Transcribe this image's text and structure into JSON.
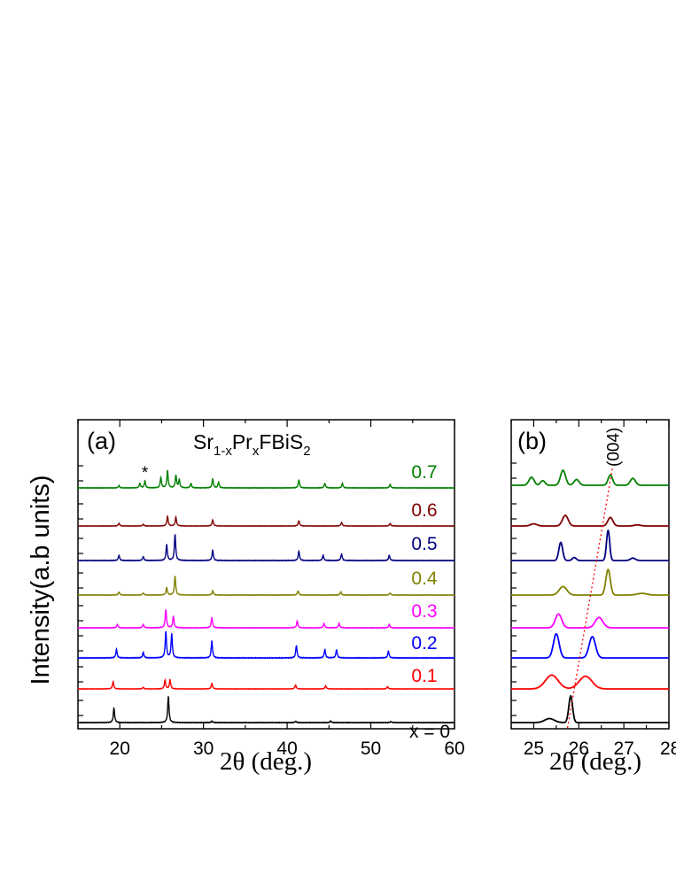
{
  "chart_data": [
    {
      "panel": "(a)",
      "type": "line",
      "compound": {
        "base": "Sr",
        "sub1": "1-x",
        "mid": "Pr",
        "sub2": "x",
        "rest": "FBiS",
        "sub3": "2"
      },
      "xlabel": {
        "prefix": "2",
        "symbol": "θ",
        "suffix": " (deg.)"
      },
      "ylabel": "Intensity(a.b units)",
      "xlim": [
        15,
        60
      ],
      "xticks": [
        "20",
        "30",
        "40",
        "50",
        "60"
      ],
      "annotation": "*",
      "annotation_x": 23.0,
      "series": [
        {
          "name": "x = 0",
          "color": "#000000",
          "peaks": [
            [
              19.3,
              0.55
            ],
            [
              25.8,
              1.0
            ],
            [
              31.0,
              0.06
            ],
            [
              41.0,
              0.05
            ],
            [
              45.2,
              0.06
            ],
            [
              52.4,
              0.04
            ]
          ]
        },
        {
          "name": "0.1",
          "color": "#ff0000",
          "peaks": [
            [
              19.2,
              0.45
            ],
            [
              22.8,
              0.1
            ],
            [
              25.4,
              0.55
            ],
            [
              26.0,
              0.58
            ],
            [
              31.0,
              0.35
            ],
            [
              41.0,
              0.25
            ],
            [
              44.6,
              0.2
            ],
            [
              52.0,
              0.15
            ]
          ]
        },
        {
          "name": "0.2",
          "color": "#0000ff",
          "peaks": [
            [
              19.6,
              0.3
            ],
            [
              22.8,
              0.2
            ],
            [
              25.5,
              0.95
            ],
            [
              26.2,
              0.85
            ],
            [
              31.0,
              0.6
            ],
            [
              41.1,
              0.45
            ],
            [
              44.5,
              0.3
            ],
            [
              45.9,
              0.3
            ],
            [
              52.1,
              0.25
            ]
          ]
        },
        {
          "name": "0.3",
          "color": "#ff00ff",
          "peaks": [
            [
              19.7,
              0.15
            ],
            [
              22.8,
              0.15
            ],
            [
              25.5,
              0.8
            ],
            [
              26.4,
              0.5
            ],
            [
              31.0,
              0.45
            ],
            [
              41.2,
              0.3
            ],
            [
              44.4,
              0.2
            ],
            [
              46.2,
              0.2
            ],
            [
              52.2,
              0.15
            ]
          ]
        },
        {
          "name": "0.4",
          "color": "#808000",
          "peaks": [
            [
              19.9,
              0.15
            ],
            [
              22.8,
              0.1
            ],
            [
              25.6,
              0.35
            ],
            [
              26.6,
              0.9
            ],
            [
              31.1,
              0.2
            ],
            [
              41.3,
              0.2
            ],
            [
              46.4,
              0.15
            ],
            [
              52.3,
              0.1
            ]
          ]
        },
        {
          "name": "0.5",
          "color": "#000080",
          "peaks": [
            [
              19.9,
              0.2
            ],
            [
              22.8,
              0.15
            ],
            [
              25.6,
              0.6
            ],
            [
              26.6,
              1.0
            ],
            [
              31.1,
              0.4
            ],
            [
              41.4,
              0.35
            ],
            [
              44.3,
              0.2
            ],
            [
              46.5,
              0.25
            ],
            [
              52.2,
              0.2
            ]
          ]
        },
        {
          "name": "0.6",
          "color": "#800000",
          "peaks": [
            [
              19.9,
              0.15
            ],
            [
              22.8,
              0.1
            ],
            [
              25.7,
              0.55
            ],
            [
              26.7,
              0.5
            ],
            [
              31.1,
              0.35
            ],
            [
              41.4,
              0.3
            ],
            [
              46.5,
              0.2
            ],
            [
              52.3,
              0.15
            ]
          ]
        },
        {
          "name": "0.7",
          "color": "#008000",
          "peaks": [
            [
              19.9,
              0.1
            ],
            [
              22.4,
              0.2
            ],
            [
              23.0,
              0.3
            ],
            [
              24.9,
              0.45
            ],
            [
              25.7,
              0.75
            ],
            [
              26.7,
              0.55
            ],
            [
              27.1,
              0.35
            ],
            [
              28.5,
              0.2
            ],
            [
              31.1,
              0.4
            ],
            [
              31.8,
              0.25
            ],
            [
              41.4,
              0.35
            ],
            [
              44.5,
              0.2
            ],
            [
              46.6,
              0.2
            ],
            [
              52.3,
              0.15
            ]
          ]
        }
      ]
    },
    {
      "panel": "(b)",
      "type": "line",
      "xlabel": {
        "prefix": "2",
        "symbol": "θ",
        "suffix": " (deg.)"
      },
      "xlim": [
        24.5,
        28
      ],
      "xticks": [
        "25",
        "26",
        "27",
        "28"
      ],
      "annotation": "(004)",
      "guide_line": {
        "x_start": 25.75,
        "x_end": 26.75
      },
      "series": [
        {
          "name": "x = 0",
          "peaks": [
            [
              25.35,
              0.15,
              0.15
            ],
            [
              25.82,
              1.0,
              0.06
            ]
          ]
        },
        {
          "name": "0.1",
          "peaks": [
            [
              25.4,
              0.6,
              0.2
            ],
            [
              26.15,
              0.55,
              0.2
            ]
          ]
        },
        {
          "name": "0.2",
          "peaks": [
            [
              25.5,
              0.85,
              0.09
            ],
            [
              26.3,
              0.75,
              0.1
            ]
          ]
        },
        {
          "name": "0.3",
          "peaks": [
            [
              25.55,
              0.6,
              0.1
            ],
            [
              26.45,
              0.45,
              0.12
            ]
          ]
        },
        {
          "name": "0.4",
          "peaks": [
            [
              25.65,
              0.3,
              0.12
            ],
            [
              26.65,
              0.9,
              0.07
            ],
            [
              27.4,
              0.06,
              0.15
            ]
          ]
        },
        {
          "name": "0.5",
          "peaks": [
            [
              25.6,
              0.6,
              0.06
            ],
            [
              25.9,
              0.1,
              0.06
            ],
            [
              26.65,
              1.0,
              0.05
            ],
            [
              27.2,
              0.08,
              0.08
            ]
          ]
        },
        {
          "name": "0.6",
          "peaks": [
            [
              25.0,
              0.1,
              0.1
            ],
            [
              25.7,
              0.5,
              0.09
            ],
            [
              26.7,
              0.4,
              0.08
            ],
            [
              27.3,
              0.05,
              0.1
            ]
          ]
        },
        {
          "name": "0.7",
          "peaks": [
            [
              24.95,
              0.35,
              0.08
            ],
            [
              25.2,
              0.2,
              0.07
            ],
            [
              25.65,
              0.65,
              0.08
            ],
            [
              25.95,
              0.25,
              0.08
            ],
            [
              26.7,
              0.45,
              0.07
            ],
            [
              27.2,
              0.3,
              0.08
            ]
          ]
        }
      ]
    }
  ]
}
